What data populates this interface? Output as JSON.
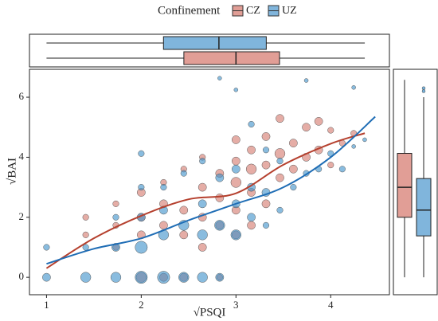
{
  "chart_data": {
    "type": "scatter",
    "legend_title": "Confinement",
    "xlabel": "√PSQI",
    "ylabel": "√BAI",
    "xlim": [
      0.82,
      4.62
    ],
    "ylim": [
      -0.58,
      6.93
    ],
    "xticks": [
      1,
      2,
      3,
      4
    ],
    "yticks": [
      0,
      2,
      4,
      6
    ],
    "grid": false,
    "series": [
      {
        "name": "CZ",
        "color": "#d4776b",
        "line_color": "#b5402e",
        "box_color": "#e19e96",
        "x": [
          1.414,
          1.414,
          1.732,
          1.732,
          1.732,
          2,
          2,
          2,
          2,
          2.236,
          2.236,
          2.236,
          2.236,
          2.449,
          2.449,
          2.449,
          2.449,
          2.646,
          2.646,
          2.646,
          2.646,
          2.828,
          2.828,
          2.828,
          2.828,
          3,
          3,
          3,
          3,
          3,
          3.162,
          3.162,
          3.162,
          3.162,
          3.317,
          3.317,
          3.317,
          3.464,
          3.464,
          3.464,
          3.606,
          3.606,
          3.742,
          3.742,
          3.873,
          3.873,
          4,
          4,
          4.123,
          4.243
        ],
        "values": [
          2,
          1.414,
          2.449,
          1,
          1.732,
          2.828,
          2,
          1.414,
          0,
          3.162,
          2.449,
          1.732,
          0,
          3.606,
          2.236,
          1.414,
          0,
          4,
          3,
          2,
          1,
          3.464,
          2.646,
          1.732,
          0,
          4.583,
          3.873,
          3.162,
          2.236,
          1.414,
          4.243,
          3.606,
          2.828,
          1.732,
          4.69,
          3.742,
          2.449,
          5.292,
          4.123,
          3.317,
          4.472,
          3.606,
          5,
          4,
          5.196,
          4.243,
          4.899,
          3.742,
          4.472,
          4.796
        ],
        "sizes": [
          2,
          2,
          2,
          2,
          2,
          3,
          3,
          3,
          4,
          2,
          3,
          3,
          3,
          2,
          3,
          3,
          3,
          2,
          3,
          3,
          3,
          3,
          3,
          3,
          2,
          3,
          3,
          4,
          3,
          3,
          3,
          4,
          3,
          3,
          3,
          3,
          3,
          3,
          4,
          3,
          3,
          3,
          3,
          3,
          3,
          3,
          2,
          2,
          2,
          2
        ],
        "smooth": {
          "x": [
            1,
            1.5,
            2,
            2.5,
            3,
            3.5,
            4,
            4.36
          ],
          "values": [
            0.3,
            1.3,
            2.05,
            2.6,
            2.8,
            3.75,
            4.45,
            4.8
          ]
        },
        "box_x": {
          "whisker_low": 1,
          "q1": 2.45,
          "median": 3.0,
          "q3": 3.46,
          "whisker_high": 4.36
        },
        "box_y": {
          "whisker_low": 0,
          "q1": 2.0,
          "median": 3.0,
          "q3": 4.13,
          "whisker_high": 6.58,
          "outliers": []
        }
      },
      {
        "name": "UZ",
        "color": "#3b8fc9",
        "line_color": "#1f6db5",
        "box_color": "#80b5dc",
        "x": [
          1,
          1,
          1.414,
          1.414,
          1.732,
          1.732,
          1.732,
          2,
          2,
          2,
          2,
          2,
          2.236,
          2.236,
          2.236,
          2.236,
          2.449,
          2.449,
          2.449,
          2.646,
          2.646,
          2.646,
          2.646,
          2.828,
          2.828,
          2.828,
          2.828,
          3,
          3,
          3,
          3,
          3.162,
          3.162,
          3.162,
          3.317,
          3.317,
          3.317,
          3.464,
          3.464,
          3.606,
          3.742,
          3.742,
          3.873,
          4,
          4.123,
          4.243,
          4.243,
          4.359
        ],
        "values": [
          0,
          1,
          0,
          1,
          0,
          1,
          2,
          0,
          1,
          2,
          3,
          4.123,
          0,
          1.414,
          2.236,
          3,
          0,
          1.732,
          3.464,
          0,
          1.414,
          2.449,
          3.873,
          0,
          1.732,
          3.317,
          6.633,
          1.414,
          2.449,
          3.606,
          6.245,
          2,
          3,
          5.099,
          1.732,
          2.828,
          4.243,
          2.236,
          3.873,
          3,
          3.464,
          6.557,
          3.606,
          4.123,
          3.606,
          4.359,
          6.325,
          4.583
        ],
        "sizes": [
          3,
          2,
          4,
          2,
          4,
          3,
          2,
          5,
          5,
          3,
          2,
          2,
          5,
          4,
          3,
          2,
          4,
          4,
          2,
          4,
          4,
          3,
          2,
          3,
          4,
          3,
          1,
          4,
          3,
          3,
          1,
          3,
          3,
          2,
          2,
          3,
          2,
          2,
          2,
          2,
          2,
          1,
          2,
          2,
          2,
          1,
          1,
          1
        ],
        "smooth": {
          "x": [
            1,
            1.5,
            2,
            2.5,
            3,
            3.5,
            4,
            4.47
          ],
          "values": [
            0.45,
            0.95,
            1.3,
            1.9,
            2.45,
            3.0,
            4.0,
            5.35
          ]
        },
        "box_x": {
          "whisker_low": 1,
          "q1": 2.235,
          "median": 2.82,
          "q3": 3.32,
          "whisker_high": 4.36
        },
        "box_y": {
          "whisker_low": 0,
          "q1": 1.38,
          "median": 2.24,
          "q3": 3.29,
          "whisker_high": 6.0,
          "outliers": [
            6.3,
            6.2
          ]
        }
      }
    ]
  }
}
